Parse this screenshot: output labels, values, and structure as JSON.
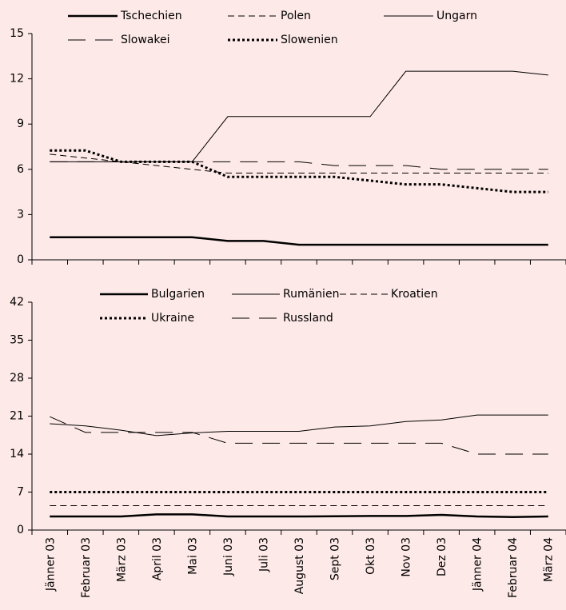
{
  "chart_data": [
    {
      "type": "line",
      "ylim": [
        0,
        15
      ],
      "yticks": [
        0,
        3,
        6,
        9,
        12,
        15
      ],
      "series": [
        {
          "name": "Tschechien",
          "color": "#000",
          "style": "thick",
          "values": [
            1.5,
            1.5,
            1.5,
            1.5,
            1.5,
            1.25,
            1.25,
            1.0,
            1.0,
            1.0,
            1.0,
            1.0,
            1.0,
            1.0,
            1.0
          ]
        },
        {
          "name": "Polen",
          "color": "#000",
          "style": "dashed",
          "values": [
            7.0,
            6.75,
            6.5,
            6.25,
            6.0,
            5.75,
            5.75,
            5.75,
            5.75,
            5.75,
            5.75,
            5.75,
            5.75,
            5.75,
            5.75
          ]
        },
        {
          "name": "Ungarn",
          "color": "#000",
          "style": "solid",
          "values": [
            6.5,
            6.5,
            6.5,
            6.5,
            6.5,
            9.5,
            9.5,
            9.5,
            9.5,
            9.5,
            12.5,
            12.5,
            12.5,
            12.5,
            12.25
          ]
        },
        {
          "name": "Slowakei",
          "color": "#000",
          "style": "longdash",
          "values": [
            6.5,
            6.5,
            6.5,
            6.5,
            6.5,
            6.5,
            6.5,
            6.5,
            6.25,
            6.25,
            6.25,
            6.0,
            6.0,
            6.0,
            6.0
          ]
        },
        {
          "name": "Slowenien",
          "color": "#000",
          "style": "dotted",
          "values": [
            7.25,
            7.25,
            6.5,
            6.5,
            6.5,
            5.5,
            5.5,
            5.5,
            5.5,
            5.25,
            5.0,
            5.0,
            4.75,
            4.5,
            4.5
          ]
        }
      ]
    },
    {
      "type": "line",
      "ylim": [
        0,
        42
      ],
      "yticks": [
        0,
        7,
        14,
        21,
        28,
        35,
        42
      ],
      "categories": [
        "Jänner 03",
        "Februar 03",
        "März 03",
        "April 03",
        "Mai 03",
        "Juni 03",
        "Juli 03",
        "August 03",
        "Sept 03",
        "Okt 03",
        "Nov 03",
        "Dez 03",
        "Jänner 04",
        "Februar 04",
        "März 04"
      ],
      "series": [
        {
          "name": "Bulgarien",
          "color": "#000",
          "style": "thick",
          "values": [
            2.5,
            2.5,
            2.5,
            2.9,
            2.9,
            2.5,
            2.5,
            2.5,
            2.55,
            2.6,
            2.6,
            2.8,
            2.5,
            2.4,
            2.5
          ]
        },
        {
          "name": "Rumänien",
          "color": "#000",
          "style": "solid",
          "values": [
            19.6,
            19.2,
            18.4,
            17.4,
            17.9,
            18.2,
            18.2,
            18.2,
            19.0,
            19.2,
            20.0,
            20.3,
            21.2,
            21.2,
            21.2
          ]
        },
        {
          "name": "Kroatien",
          "color": "#000",
          "style": "dashed",
          "values": [
            4.5,
            4.5,
            4.5,
            4.5,
            4.5,
            4.5,
            4.5,
            4.5,
            4.5,
            4.5,
            4.5,
            4.5,
            4.5,
            4.5,
            4.5
          ]
        },
        {
          "name": "Ukraine",
          "color": "#000",
          "style": "dotted",
          "values": [
            7,
            7,
            7,
            7,
            7,
            7,
            7,
            7,
            7,
            7,
            7,
            7,
            7,
            7,
            7
          ]
        },
        {
          "name": "Russland",
          "color": "#000",
          "style": "longdash",
          "values": [
            20.9,
            18,
            18,
            18,
            18,
            16,
            16,
            16,
            16,
            16,
            16,
            16,
            14,
            14,
            14
          ]
        }
      ]
    }
  ]
}
